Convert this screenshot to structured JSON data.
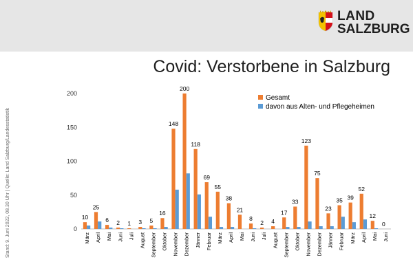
{
  "header": {
    "brand_line1": "LAND",
    "brand_line2": "SALZBURG",
    "crest": "salzburg-coat-of-arms"
  },
  "source_note": "Stand: 9. Juni 2022, 08.30 Uhr | Quelle: Land Salzburg/Landesstatistik",
  "colors": {
    "header_bg": "#e6e6e6",
    "gesamt": "#ed7d31",
    "heime": "#5b9bd5"
  },
  "chart_data": {
    "type": "bar",
    "title": "Covid: Verstorbene in Salzburg",
    "xlabel": "",
    "ylabel": "",
    "ylim": [
      0,
      200
    ],
    "yticks": [
      0,
      50,
      100,
      150,
      200
    ],
    "grid": false,
    "legend_position": "top-right",
    "categories": [
      "März",
      "April",
      "Mai",
      "Juni",
      "Juli",
      "August",
      "September",
      "Oktober",
      "November",
      "Dezember",
      "Jänner",
      "Februar",
      "März",
      "April",
      "Mai",
      "Juni",
      "Juli",
      "August",
      "September",
      "Oktober",
      "November",
      "Dezember",
      "Jänner",
      "Februar",
      "März",
      "April",
      "Mai",
      "Juni"
    ],
    "series": [
      {
        "name": "Gesamt",
        "color": "#ed7d31",
        "labeled": true,
        "values": [
          10,
          25,
          6,
          2,
          1,
          3,
          5,
          16,
          148,
          200,
          118,
          69,
          55,
          38,
          21,
          8,
          2,
          4,
          17,
          33,
          123,
          75,
          23,
          35,
          39,
          52,
          12,
          0
        ]
      },
      {
        "name": "davon aus Alten- und Pflegeheimen",
        "color": "#5b9bd5",
        "labeled": false,
        "values": [
          5,
          11,
          2,
          1,
          0,
          1,
          1,
          3,
          58,
          82,
          51,
          18,
          3,
          3,
          0,
          1,
          0,
          0,
          3,
          3,
          11,
          4,
          4,
          18,
          10,
          14,
          1,
          0
        ]
      }
    ]
  }
}
